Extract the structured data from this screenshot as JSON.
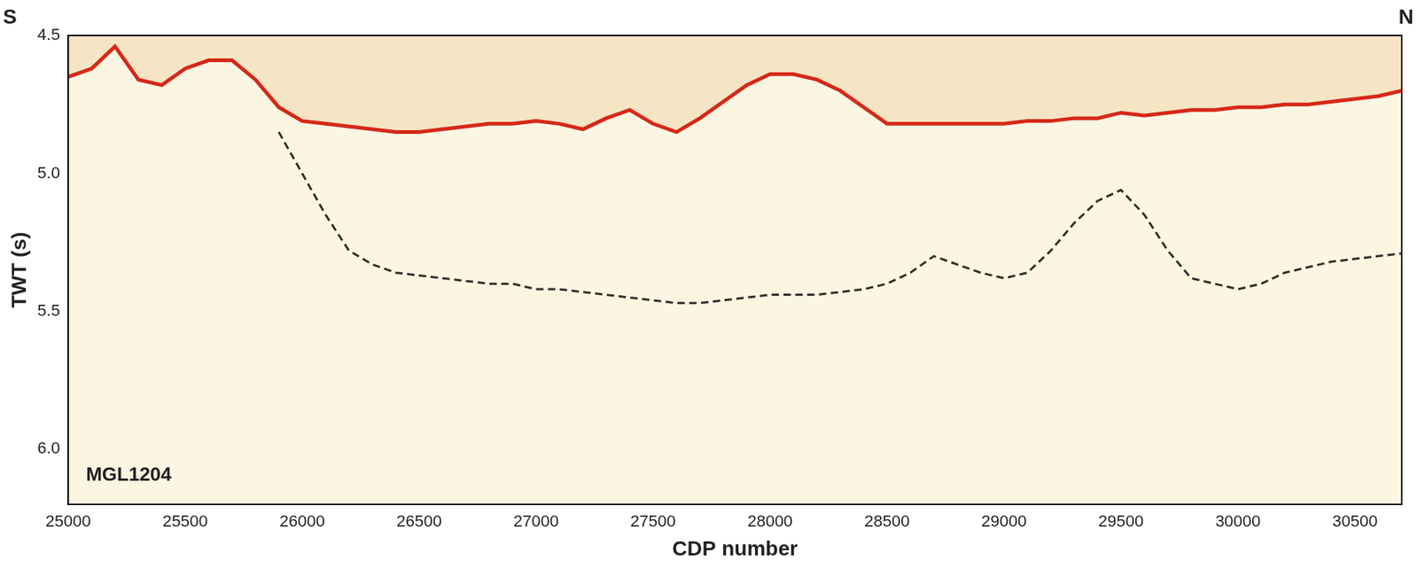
{
  "chart_data": {
    "type": "line",
    "x_label": "CDP number",
    "y_label": "TWT (s)",
    "annotations": [
      "S",
      "N",
      "MGL1204"
    ],
    "x": [
      25000,
      25100,
      25200,
      25300,
      25400,
      25500,
      25600,
      25700,
      25800,
      25900,
      26000,
      26100,
      26200,
      26300,
      26400,
      26500,
      26600,
      26700,
      26800,
      26900,
      27000,
      27100,
      27200,
      27300,
      27400,
      27500,
      27600,
      27700,
      27800,
      27900,
      28000,
      28100,
      28200,
      28300,
      28400,
      28500,
      28600,
      28700,
      28800,
      28900,
      29000,
      29100,
      29200,
      29300,
      29400,
      29500,
      29600,
      29700,
      29800,
      29900,
      30000,
      30100,
      30200,
      30300,
      30400,
      30500,
      30600,
      30700
    ],
    "series": [
      {
        "color": "#d62818",
        "line_style": "solid",
        "values": [
          4.65,
          4.62,
          4.54,
          4.66,
          4.68,
          4.62,
          4.59,
          4.59,
          4.66,
          4.76,
          4.81,
          4.82,
          4.83,
          4.84,
          4.85,
          4.85,
          4.84,
          4.83,
          4.82,
          4.82,
          4.81,
          4.82,
          4.84,
          4.8,
          4.77,
          4.82,
          4.85,
          4.8,
          4.74,
          4.68,
          4.64,
          4.64,
          4.66,
          4.7,
          4.76,
          4.82,
          4.82,
          4.82,
          4.82,
          4.82,
          4.82,
          4.81,
          4.81,
          4.8,
          4.8,
          4.78,
          4.79,
          4.78,
          4.77,
          4.77,
          4.76,
          4.76,
          4.75,
          4.75,
          4.74,
          4.73,
          4.72,
          4.7
        ]
      },
      {
        "color": "#3a2a2a",
        "line_style": "dashed",
        "values": [
          null,
          null,
          null,
          null,
          null,
          null,
          null,
          null,
          null,
          4.85,
          5.0,
          5.15,
          5.28,
          5.33,
          5.36,
          5.37,
          5.38,
          5.39,
          5.4,
          5.4,
          5.42,
          5.42,
          5.43,
          5.44,
          5.45,
          5.46,
          5.47,
          5.47,
          5.46,
          5.45,
          5.44,
          5.44,
          5.44,
          5.43,
          5.42,
          5.4,
          5.36,
          5.3,
          5.33,
          5.36,
          5.38,
          5.36,
          5.28,
          5.18,
          5.1,
          5.06,
          5.15,
          5.28,
          5.38,
          5.4,
          5.42,
          5.4,
          5.36,
          5.34,
          5.32,
          5.31,
          5.3,
          5.29
        ]
      }
    ],
    "xlim": [
      25000,
      30700
    ],
    "xticks": [
      25000,
      25500,
      26000,
      26500,
      27000,
      27500,
      28000,
      28500,
      29000,
      29500,
      30000,
      30500
    ],
    "ylim": [
      4.5,
      6.2
    ],
    "yticks": [
      4.5,
      {
        "value": 5,
        "label": "5.0"
      },
      5.5,
      {
        "value": 6,
        "label": "6.0"
      }
    ],
    "grid": false,
    "tick_labels": true
  }
}
